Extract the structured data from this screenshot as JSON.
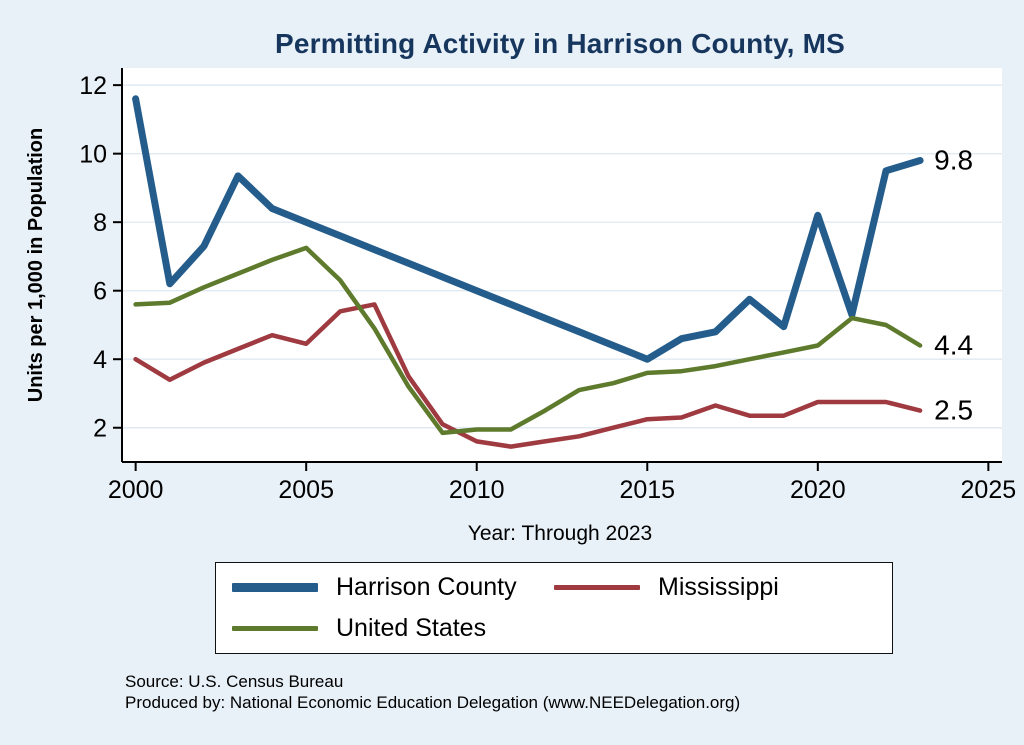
{
  "title": "Permitting Activity in Harrison County, MS",
  "ylabel": "Units per 1,000 in Population",
  "xlabel": "Year: Through 2023",
  "source_line1": "Source: U.S. Census Bureau",
  "source_line2": "Produced by: National Economic Education Delegation (www.NEEDelegation.org)",
  "colors": {
    "background": "#e8f1f8",
    "plot_background": "#ffffff",
    "gridline": "#e0eaf3",
    "axis": "#000000",
    "title": "#17365d",
    "harrison_county": "#245d8c",
    "mississippi": "#9e3a40",
    "united_states": "#5e7a2c"
  },
  "chart_data": {
    "type": "line",
    "title": "Permitting Activity in Harrison County, MS",
    "xlabel": "Year: Through 2023",
    "ylabel": "Units per 1,000 in Population",
    "x": [
      2000,
      2001,
      2002,
      2003,
      2004,
      2005,
      2006,
      2007,
      2008,
      2009,
      2010,
      2011,
      2012,
      2013,
      2014,
      2015,
      2016,
      2017,
      2018,
      2019,
      2020,
      2021,
      2022,
      2023
    ],
    "series": [
      {
        "name": "Harrison County",
        "color_key": "harrison_county",
        "end_label": "9.8",
        "values": [
          11.6,
          6.2,
          7.3,
          9.35,
          8.4,
          8.0,
          7.6,
          7.2,
          6.8,
          6.4,
          6.0,
          5.6,
          5.2,
          4.8,
          4.4,
          4.0,
          4.6,
          4.8,
          5.75,
          4.95,
          8.2,
          5.3,
          9.5,
          9.8
        ]
      },
      {
        "name": "Mississippi",
        "color_key": "mississippi",
        "end_label": "2.5",
        "values": [
          4.0,
          3.4,
          3.9,
          4.3,
          4.7,
          4.45,
          5.4,
          5.6,
          3.5,
          2.1,
          1.6,
          1.45,
          1.6,
          1.75,
          2.0,
          2.25,
          2.3,
          2.65,
          2.35,
          2.35,
          2.75,
          2.75,
          2.75,
          2.5
        ]
      },
      {
        "name": "United States",
        "color_key": "united_states",
        "end_label": "4.4",
        "values": [
          5.6,
          5.65,
          6.1,
          6.5,
          6.9,
          7.25,
          6.3,
          4.9,
          3.2,
          1.85,
          1.95,
          1.95,
          2.5,
          3.1,
          3.3,
          3.6,
          3.65,
          3.8,
          4.0,
          4.2,
          4.4,
          5.2,
          5.0,
          4.4
        ]
      }
    ],
    "xticks": [
      2000,
      2005,
      2010,
      2015,
      2020,
      2025
    ],
    "yticks": [
      2,
      4,
      6,
      8,
      10,
      12
    ],
    "xlim": [
      1999.6,
      2025.4
    ],
    "ylim": [
      1.0,
      12.5
    ],
    "grid": true,
    "legend_position": "bottom"
  },
  "legend": {
    "items": [
      {
        "label": "Harrison County",
        "color_key": "harrison_county"
      },
      {
        "label": "Mississippi",
        "color_key": "mississippi"
      },
      {
        "label": "United States",
        "color_key": "united_states"
      }
    ]
  }
}
